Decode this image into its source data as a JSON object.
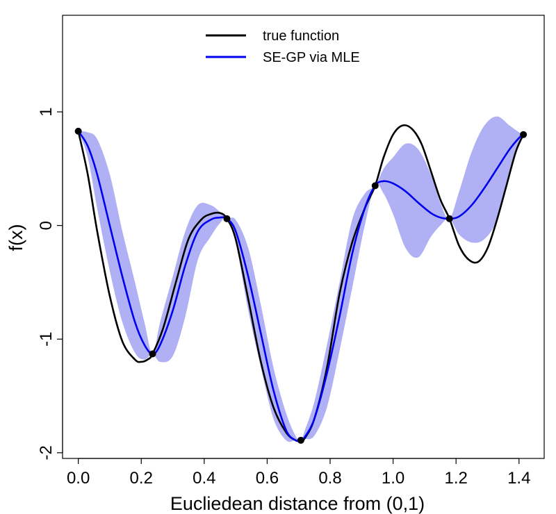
{
  "chart_data": {
    "type": "line",
    "xlabel": "Eucliedean distance from (0,1)",
    "ylabel": "f(x)",
    "xlim": [
      -0.05,
      1.48
    ],
    "ylim": [
      -2.05,
      1.85
    ],
    "xticks": [
      0.0,
      0.2,
      0.4,
      0.6,
      0.8,
      1.0,
      1.2,
      1.4
    ],
    "xtick_labels": [
      "0.0",
      "0.2",
      "0.4",
      "0.6",
      "0.8",
      "1.0",
      "1.2",
      "1.4"
    ],
    "yticks": [
      -2,
      -1,
      0,
      1
    ],
    "ytick_labels": [
      "-2",
      "-1",
      "0",
      "1"
    ],
    "legend": {
      "position": "top-center",
      "entries": [
        {
          "label": "true function",
          "color": "#000000"
        },
        {
          "label": "SE-GP via MLE",
          "color": "#0000ee"
        }
      ]
    },
    "colors": {
      "true": "#000000",
      "gp": "#0000ee",
      "band": "#b0b0f5"
    },
    "observations": [
      {
        "x": 0.0,
        "y": 0.83
      },
      {
        "x": 0.236,
        "y": -1.13
      },
      {
        "x": 0.472,
        "y": 0.06
      },
      {
        "x": 0.707,
        "y": -1.89
      },
      {
        "x": 0.943,
        "y": 0.35
      },
      {
        "x": 1.179,
        "y": 0.06
      },
      {
        "x": 1.414,
        "y": 0.8
      }
    ],
    "series": [
      {
        "name": "true function",
        "x": [
          0.0,
          0.03,
          0.06,
          0.1,
          0.14,
          0.18,
          0.2,
          0.22,
          0.236,
          0.27,
          0.31,
          0.35,
          0.39,
          0.42,
          0.45,
          0.472,
          0.5,
          0.54,
          0.58,
          0.62,
          0.66,
          0.69,
          0.707,
          0.72,
          0.75,
          0.79,
          0.83,
          0.87,
          0.91,
          0.943,
          0.97,
          1.0,
          1.03,
          1.06,
          1.09,
          1.12,
          1.15,
          1.179,
          1.21,
          1.24,
          1.27,
          1.3,
          1.33,
          1.36,
          1.39,
          1.414
        ],
        "y": [
          0.83,
          0.45,
          -0.05,
          -0.62,
          -1.02,
          -1.18,
          -1.2,
          -1.18,
          -1.13,
          -0.9,
          -0.5,
          -0.12,
          0.05,
          0.1,
          0.11,
          0.06,
          -0.12,
          -0.65,
          -1.2,
          -1.6,
          -1.82,
          -1.89,
          -1.89,
          -1.87,
          -1.7,
          -1.25,
          -0.6,
          -0.15,
          0.15,
          0.35,
          0.6,
          0.8,
          0.88,
          0.85,
          0.72,
          0.48,
          0.23,
          0.06,
          -0.18,
          -0.3,
          -0.32,
          -0.2,
          0.05,
          0.35,
          0.65,
          0.8
        ]
      },
      {
        "name": "SE-GP via MLE",
        "x": [
          0.0,
          0.03,
          0.06,
          0.1,
          0.14,
          0.18,
          0.21,
          0.236,
          0.26,
          0.3,
          0.34,
          0.38,
          0.42,
          0.45,
          0.472,
          0.5,
          0.54,
          0.58,
          0.62,
          0.66,
          0.69,
          0.707,
          0.72,
          0.75,
          0.79,
          0.83,
          0.87,
          0.91,
          0.943,
          0.97,
          1.0,
          1.04,
          1.08,
          1.12,
          1.15,
          1.179,
          1.21,
          1.25,
          1.29,
          1.33,
          1.37,
          1.4,
          1.414
        ],
        "y": [
          0.83,
          0.7,
          0.45,
          0.0,
          -0.45,
          -0.85,
          -1.05,
          -1.13,
          -1.05,
          -0.75,
          -0.35,
          -0.05,
          0.05,
          0.07,
          0.06,
          -0.05,
          -0.45,
          -0.95,
          -1.45,
          -1.8,
          -1.89,
          -1.89,
          -1.86,
          -1.7,
          -1.3,
          -0.8,
          -0.25,
          0.15,
          0.35,
          0.39,
          0.37,
          0.3,
          0.2,
          0.11,
          0.07,
          0.06,
          0.08,
          0.18,
          0.33,
          0.5,
          0.67,
          0.77,
          0.8
        ]
      }
    ],
    "band": {
      "x": [
        0.0,
        0.03,
        0.06,
        0.1,
        0.14,
        0.18,
        0.21,
        0.236,
        0.26,
        0.3,
        0.34,
        0.38,
        0.42,
        0.45,
        0.472,
        0.5,
        0.54,
        0.58,
        0.62,
        0.66,
        0.69,
        0.707,
        0.72,
        0.75,
        0.79,
        0.83,
        0.87,
        0.91,
        0.943,
        0.97,
        1.0,
        1.04,
        1.08,
        1.12,
        1.15,
        1.179,
        1.21,
        1.25,
        1.29,
        1.33,
        1.37,
        1.4,
        1.414
      ],
      "upper": [
        0.83,
        0.82,
        0.76,
        0.45,
        -0.05,
        -0.5,
        -0.85,
        -1.13,
        -0.85,
        -0.45,
        -0.05,
        0.18,
        0.18,
        0.12,
        0.06,
        0.05,
        -0.2,
        -0.7,
        -1.25,
        -1.65,
        -1.85,
        -1.89,
        -1.8,
        -1.55,
        -1.05,
        -0.5,
        0.05,
        0.28,
        0.35,
        0.5,
        0.6,
        0.72,
        0.67,
        0.45,
        0.2,
        0.06,
        0.3,
        0.65,
        0.88,
        0.96,
        0.88,
        0.82,
        0.8
      ],
      "lower": [
        0.83,
        0.6,
        0.15,
        -0.4,
        -0.85,
        -1.12,
        -1.18,
        -1.13,
        -1.2,
        -1.15,
        -0.8,
        -0.3,
        -0.1,
        0.02,
        0.06,
        -0.15,
        -0.75,
        -1.25,
        -1.7,
        -1.89,
        -1.89,
        -1.89,
        -1.88,
        -1.85,
        -1.6,
        -1.1,
        -0.55,
        0.0,
        0.35,
        0.28,
        0.1,
        -0.2,
        -0.28,
        -0.1,
        0.0,
        0.06,
        -0.08,
        -0.15,
        -0.12,
        0.05,
        0.45,
        0.72,
        0.8
      ]
    }
  }
}
